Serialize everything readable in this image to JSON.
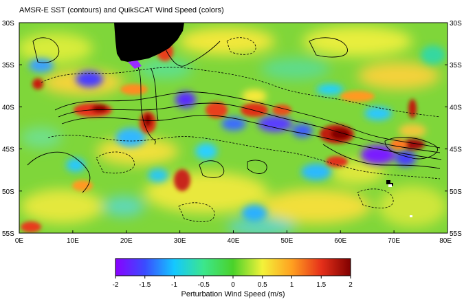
{
  "title": "AMSR-E SST (contours) and QuikSCAT Wind Speed (colors)",
  "map": {
    "lat_labels": [
      "30S",
      "35S",
      "40S",
      "45S",
      "50S",
      "55S"
    ],
    "lat_values": [
      -30,
      -35,
      -40,
      -45,
      -50,
      -55
    ],
    "lon_labels": [
      "0E",
      "10E",
      "20E",
      "30E",
      "40E",
      "50E",
      "60E",
      "70E",
      "80E"
    ],
    "lon_values": [
      0,
      10,
      20,
      30,
      40,
      50,
      60,
      70,
      80
    ],
    "lon_range": [
      0,
      80
    ],
    "lat_range": [
      -30,
      -55
    ],
    "land_mask_color": "#000000"
  },
  "colorbar": {
    "label": "Perturbation Wind Speed (m/s)",
    "range": [
      -2,
      2
    ],
    "tick_values": [
      -2,
      -1.5,
      -1,
      -0.5,
      0,
      0.5,
      1,
      1.5,
      2
    ],
    "tick_labels": [
      "-2",
      "-1.5",
      "-1",
      "-0.5",
      "0",
      "0.5",
      "1",
      "1.5",
      "2"
    ],
    "colors": [
      "#8a00ff",
      "#3a4cff",
      "#14c8ff",
      "#3ce68c",
      "#4ad22a",
      "#f3f23a",
      "#ffa020",
      "#e6301a",
      "#800000"
    ]
  }
}
